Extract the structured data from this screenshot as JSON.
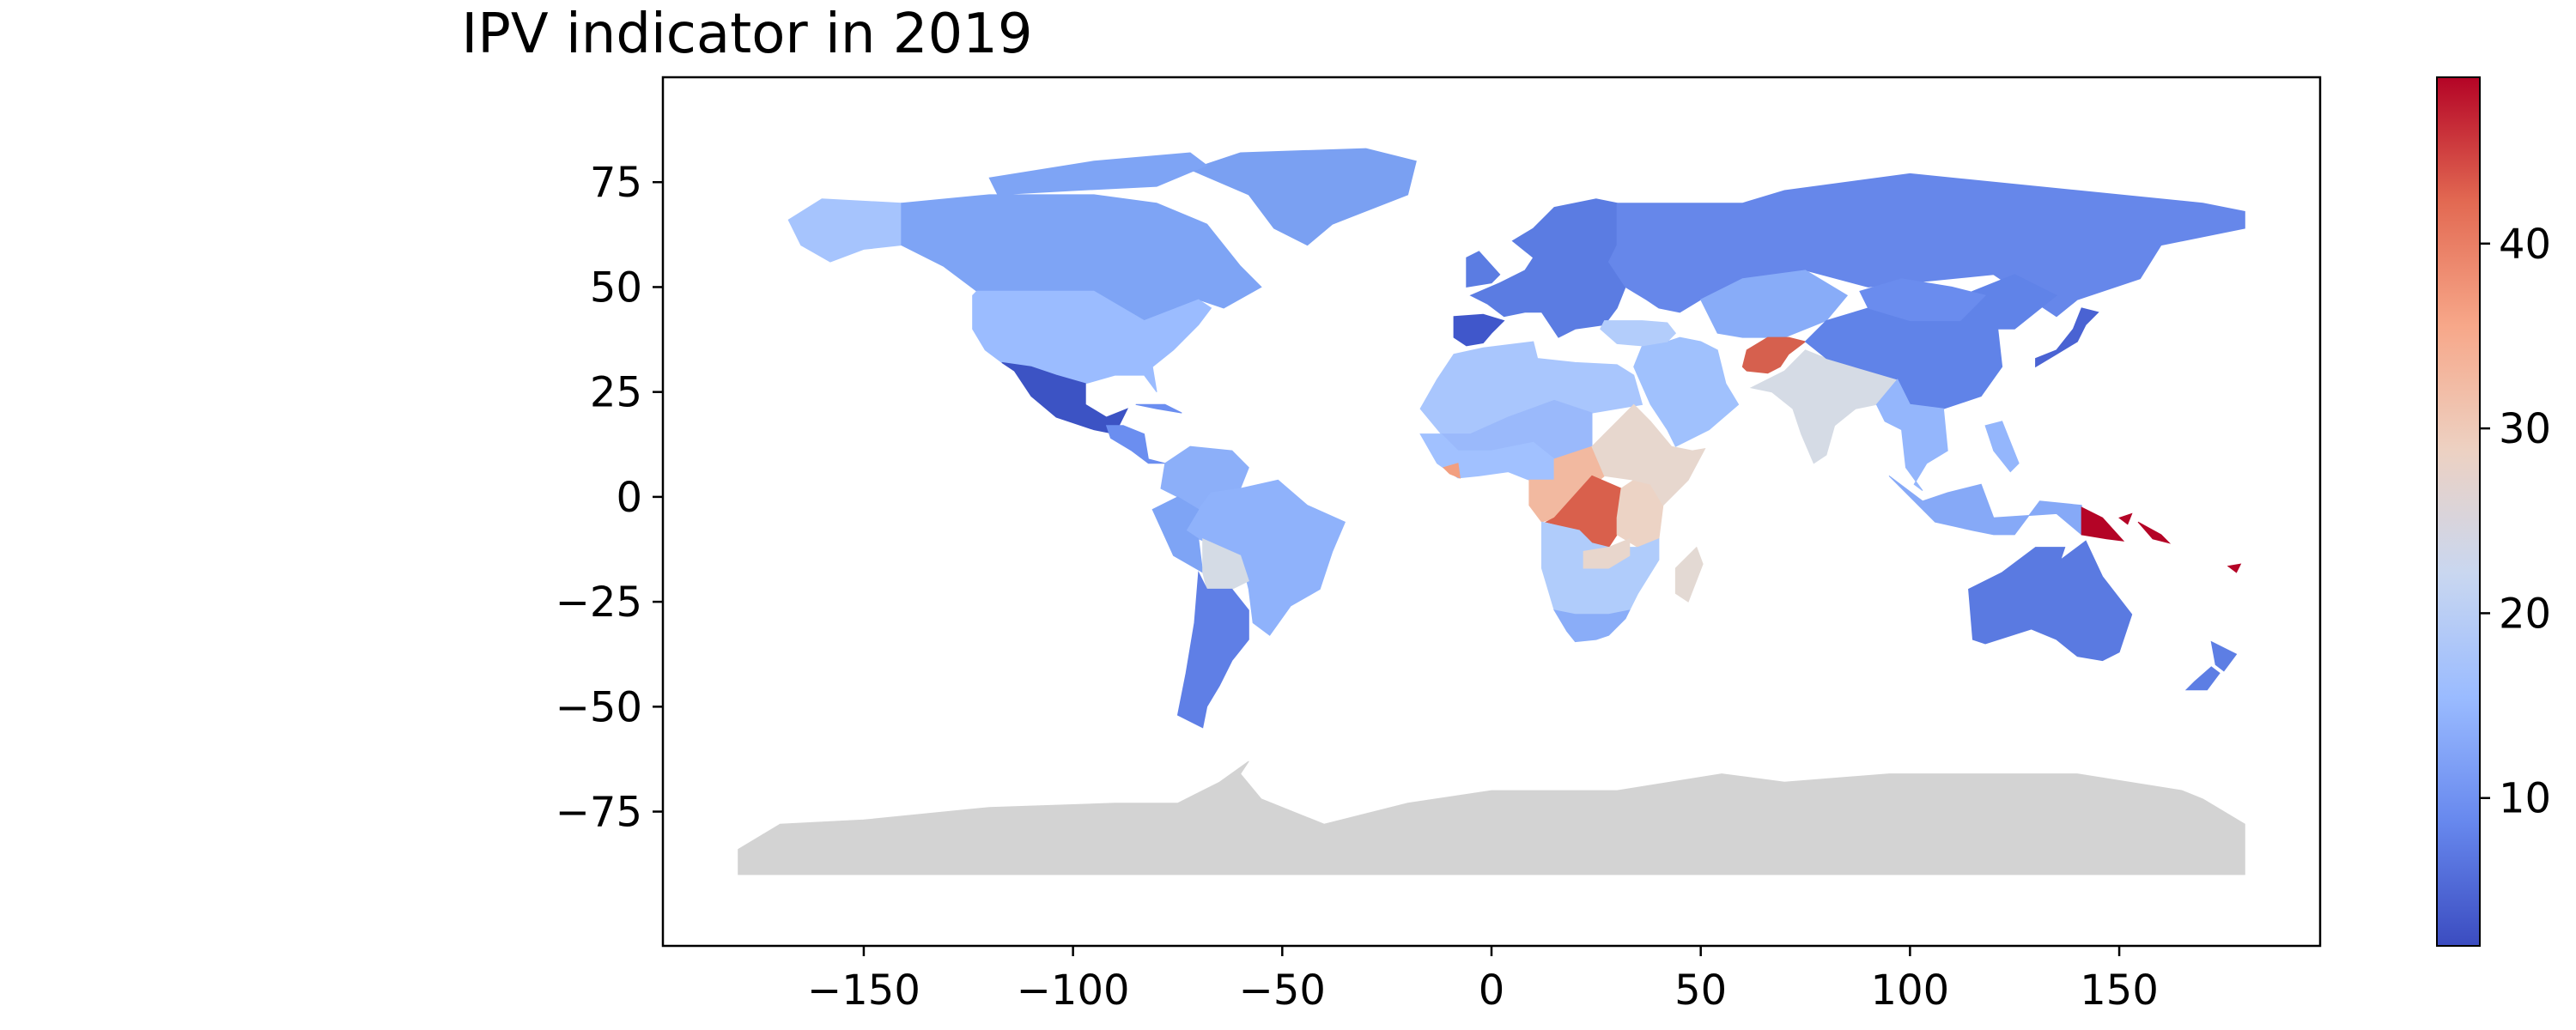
{
  "chart_data": {
    "type": "choropleth-map",
    "title": "IPV indicator in 2019",
    "xlabel": "",
    "ylabel": "",
    "xlim": [
      -198,
      198
    ],
    "ylim": [
      -107,
      100
    ],
    "xticks": [
      -150,
      -100,
      -50,
      0,
      50,
      100,
      150
    ],
    "xtick_labels": [
      "−150",
      "−100",
      "−50",
      "0",
      "50",
      "100",
      "150"
    ],
    "yticks": [
      75,
      50,
      25,
      0,
      -25,
      -50,
      -75
    ],
    "ytick_labels": [
      "75",
      "50",
      "25",
      "0",
      "−25",
      "−50",
      "−75"
    ],
    "colorbar": {
      "cmap": "coolwarm",
      "range": [
        2,
        49
      ],
      "ticks": [
        10,
        20,
        30,
        40
      ],
      "tick_labels": [
        "10",
        "20",
        "30",
        "40"
      ],
      "colors_low_to_high": [
        "#3b4cc0",
        "#6788ee",
        "#9abbff",
        "#c9d7f0",
        "#edd1c2",
        "#f7a789",
        "#e26952",
        "#b40426"
      ]
    },
    "missing_color": "#d3d3d3",
    "regions": [
      {
        "name": "Greenland",
        "value": 10,
        "color": "#7aa0f2"
      },
      {
        "name": "Alaska",
        "value": 17,
        "color": "#a6c4fd"
      },
      {
        "name": "Canada",
        "value": 11,
        "color": "#7ea4f5"
      },
      {
        "name": "United States",
        "value": 16,
        "color": "#9bbcff"
      },
      {
        "name": "Mexico",
        "value": 5,
        "color": "#3c53c4"
      },
      {
        "name": "Central America",
        "value": 9,
        "color": "#6b8ef0"
      },
      {
        "name": "Colombia/Venezuela",
        "value": 12,
        "color": "#8caff9"
      },
      {
        "name": "Brazil",
        "value": 13,
        "color": "#8fb2fb"
      },
      {
        "name": "Peru",
        "value": 10,
        "color": "#7ea4f5"
      },
      {
        "name": "Bolivia",
        "value": 25,
        "color": "#d4dbe5"
      },
      {
        "name": "Argentina/Chile",
        "value": 7,
        "color": "#5f7fe6"
      },
      {
        "name": "Europe",
        "value": 7,
        "color": "#5b7ce2"
      },
      {
        "name": "Spain",
        "value": 4,
        "color": "#4057cb"
      },
      {
        "name": "Russia",
        "value": 8,
        "color": "#6687ea"
      },
      {
        "name": "North Africa",
        "value": 17,
        "color": "#a9c6fd"
      },
      {
        "name": "Sahel",
        "value": 14,
        "color": "#9ab9fb"
      },
      {
        "name": "Middle East",
        "value": 15,
        "color": "#a0c1fd"
      },
      {
        "name": "Turkey",
        "value": 18,
        "color": "#b3cdfb"
      },
      {
        "name": "Central Asia",
        "value": 12,
        "color": "#88acf8"
      },
      {
        "name": "Afghanistan",
        "value": 44,
        "color": "#d6604e"
      },
      {
        "name": "India",
        "value": 25,
        "color": "#d5dbe5"
      },
      {
        "name": "China",
        "value": 8,
        "color": "#6083e8"
      },
      {
        "name": "Mongolia",
        "value": 8,
        "color": "#6a8cee"
      },
      {
        "name": "Japan",
        "value": 5,
        "color": "#4a63d3"
      },
      {
        "name": "Southeast Asia",
        "value": 14,
        "color": "#94b6fc"
      },
      {
        "name": "Indonesia",
        "value": 12,
        "color": "#86a9f7"
      },
      {
        "name": "Papua New Guinea",
        "value": 49,
        "color": "#b40426"
      },
      {
        "name": "Australia",
        "value": 7,
        "color": "#5a7ae1"
      },
      {
        "name": "New Zealand",
        "value": 7,
        "color": "#5d7ee4"
      },
      {
        "name": "West Africa",
        "value": 16,
        "color": "#a1c1ff"
      },
      {
        "name": "Liberia",
        "value": 36,
        "color": "#f29f80"
      },
      {
        "name": "Central Africa",
        "value": 33,
        "color": "#f2b9a0"
      },
      {
        "name": "DR Congo",
        "value": 43,
        "color": "#d9604c"
      },
      {
        "name": "East Africa",
        "value": 30,
        "color": "#ecd3c5"
      },
      {
        "name": "Ethiopia",
        "value": 28,
        "color": "#e7d7ce"
      },
      {
        "name": "Southern Africa",
        "value": 18,
        "color": "#b0ccfb"
      },
      {
        "name": "Zambia",
        "value": 28,
        "color": "#e8d6cc"
      },
      {
        "name": "Madagascar",
        "value": 28,
        "color": "#e3d9d3"
      },
      {
        "name": "South Africa",
        "value": 12,
        "color": "#8aadf8"
      },
      {
        "name": "Antarctica",
        "value": null,
        "color": "#d3d3d3"
      }
    ]
  }
}
